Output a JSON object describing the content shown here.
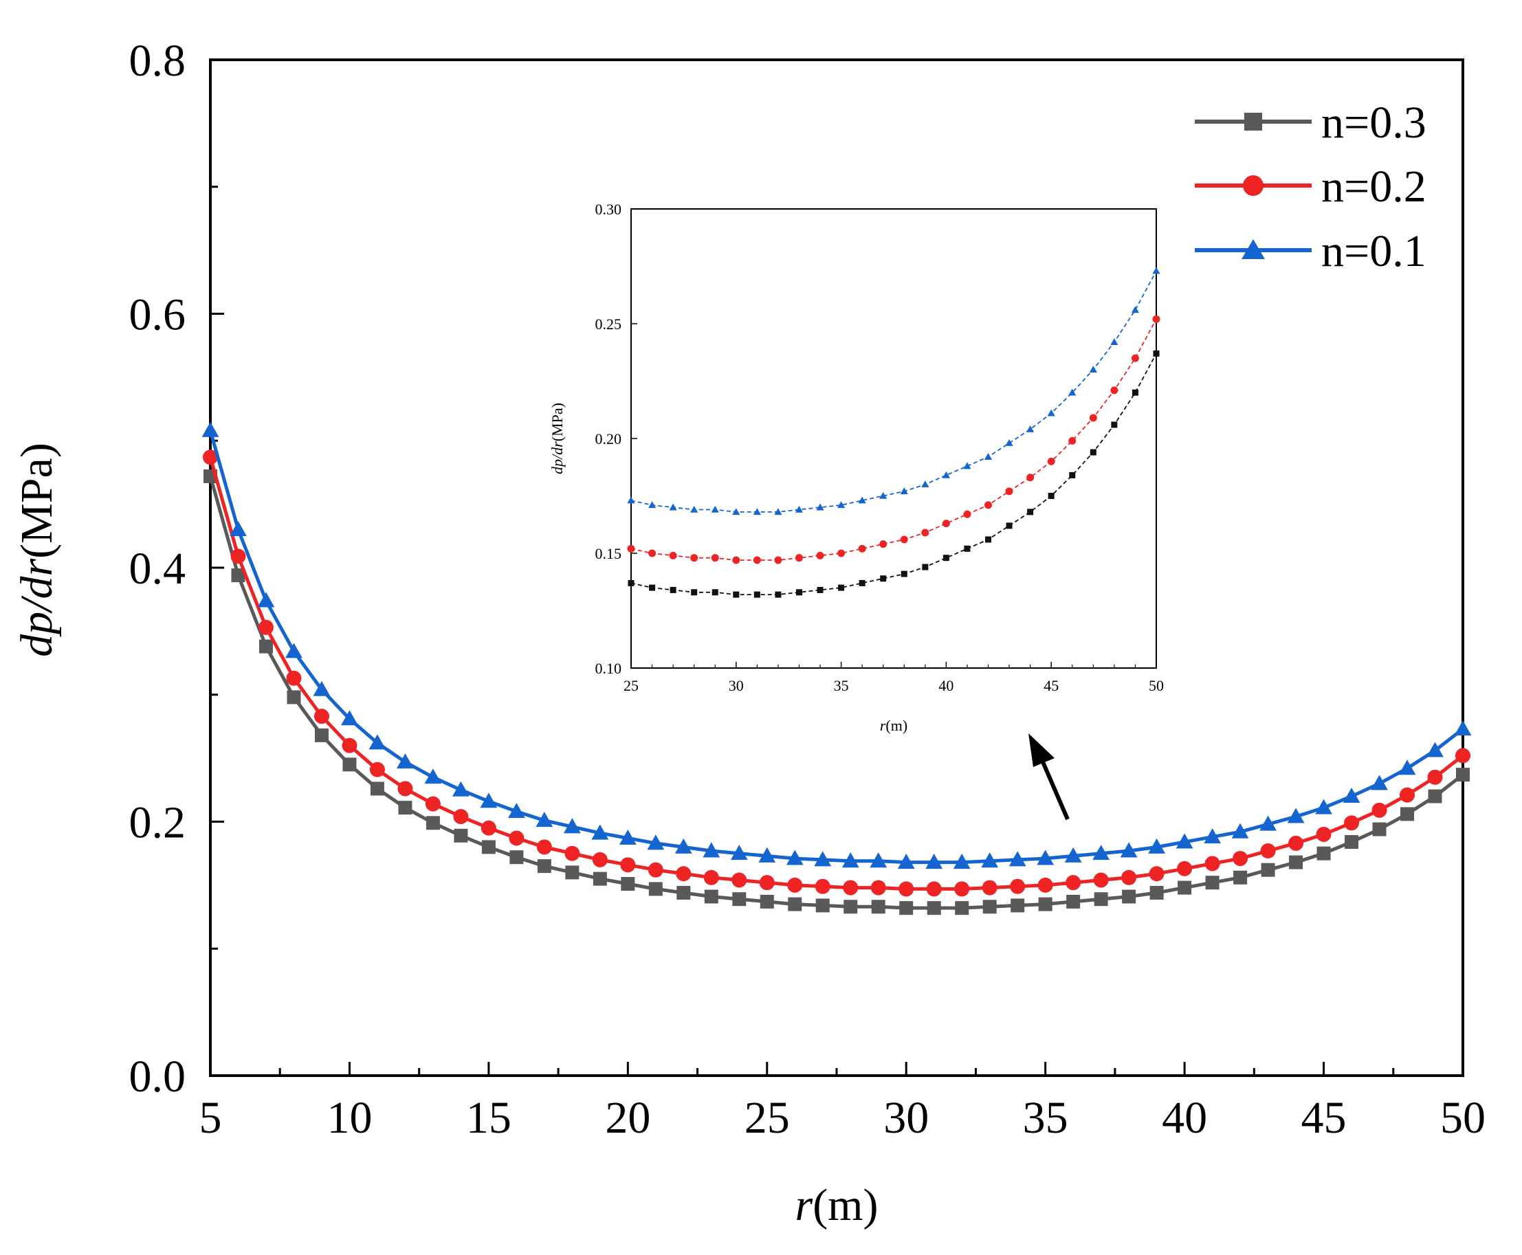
{
  "chart_data": [
    {
      "type": "line",
      "title": "",
      "xlabel_italic": "r",
      "xlabel_unit": "(m)",
      "ylabel_italic": "dp/dr",
      "ylabel_unit": "(MPa)",
      "xlim": [
        5,
        50
      ],
      "ylim": [
        0,
        0.8
      ],
      "xticks": [
        5,
        10,
        15,
        20,
        25,
        30,
        35,
        40,
        45,
        50
      ],
      "yticks": [
        0.0,
        0.2,
        0.4,
        0.6,
        0.8
      ],
      "xtick_labels": [
        "5",
        "10",
        "15",
        "20",
        "25",
        "30",
        "35",
        "40",
        "45",
        "50"
      ],
      "ytick_labels": [
        "0.0",
        "0.2",
        "0.4",
        "0.6",
        "0.8"
      ],
      "legend_position": "top-right",
      "grid": false,
      "series": [
        {
          "name": "n=0.3",
          "color": "#595959",
          "marker": "square",
          "shift": 0
        },
        {
          "name": "n=0.2",
          "color": "#ee2424",
          "marker": "circle",
          "shift": 0.015
        },
        {
          "name": "n=0.1",
          "color": "#1565d0",
          "marker": "triangle",
          "shift": 0.036
        }
      ],
      "x_points": [
        5,
        6,
        7,
        8,
        9,
        10,
        11,
        12,
        13,
        14,
        15,
        16,
        17,
        18,
        19,
        20,
        21,
        22,
        23,
        24,
        25,
        26,
        27,
        28,
        29,
        30,
        31,
        32,
        33,
        34,
        35,
        36,
        37,
        38,
        39,
        40,
        41,
        42,
        43,
        44,
        45,
        46,
        47,
        48,
        49,
        50
      ],
      "base_values": [
        0.472,
        0.394,
        0.338,
        0.298,
        0.268,
        0.245,
        0.226,
        0.211,
        0.199,
        0.189,
        0.18,
        0.172,
        0.165,
        0.16,
        0.155,
        0.151,
        0.147,
        0.144,
        0.141,
        0.139,
        0.137,
        0.135,
        0.134,
        0.133,
        0.133,
        0.132,
        0.132,
        0.132,
        0.133,
        0.134,
        0.135,
        0.137,
        0.139,
        0.141,
        0.144,
        0.148,
        0.152,
        0.156,
        0.162,
        0.168,
        0.175,
        0.184,
        0.194,
        0.206,
        0.22,
        0.237
      ]
    },
    {
      "type": "line",
      "role": "inset",
      "title": "",
      "xlabel_italic": "r",
      "xlabel_unit": "(m)",
      "ylabel_italic": "dp/dr",
      "ylabel_unit": "(MPa)",
      "xlim": [
        25,
        50
      ],
      "ylim": [
        0.1,
        0.3
      ],
      "xticks": [
        25,
        30,
        35,
        40,
        45,
        50
      ],
      "yticks": [
        0.1,
        0.15,
        0.2,
        0.25,
        0.3
      ],
      "xtick_labels": [
        "25",
        "30",
        "35",
        "40",
        "45",
        "50"
      ],
      "ytick_labels": [
        "0.10",
        "0.15",
        "0.20",
        "0.25",
        "0.30"
      ],
      "series": [
        {
          "name": "n=0.3",
          "color": "#111111",
          "marker": "square",
          "shift": 0
        },
        {
          "name": "n=0.2",
          "color": "#ee2424",
          "marker": "circle",
          "shift": 0.015
        },
        {
          "name": "n=0.1",
          "color": "#1565d0",
          "marker": "triangle",
          "shift": 0.036
        }
      ],
      "x_range": [
        25,
        50
      ]
    }
  ]
}
